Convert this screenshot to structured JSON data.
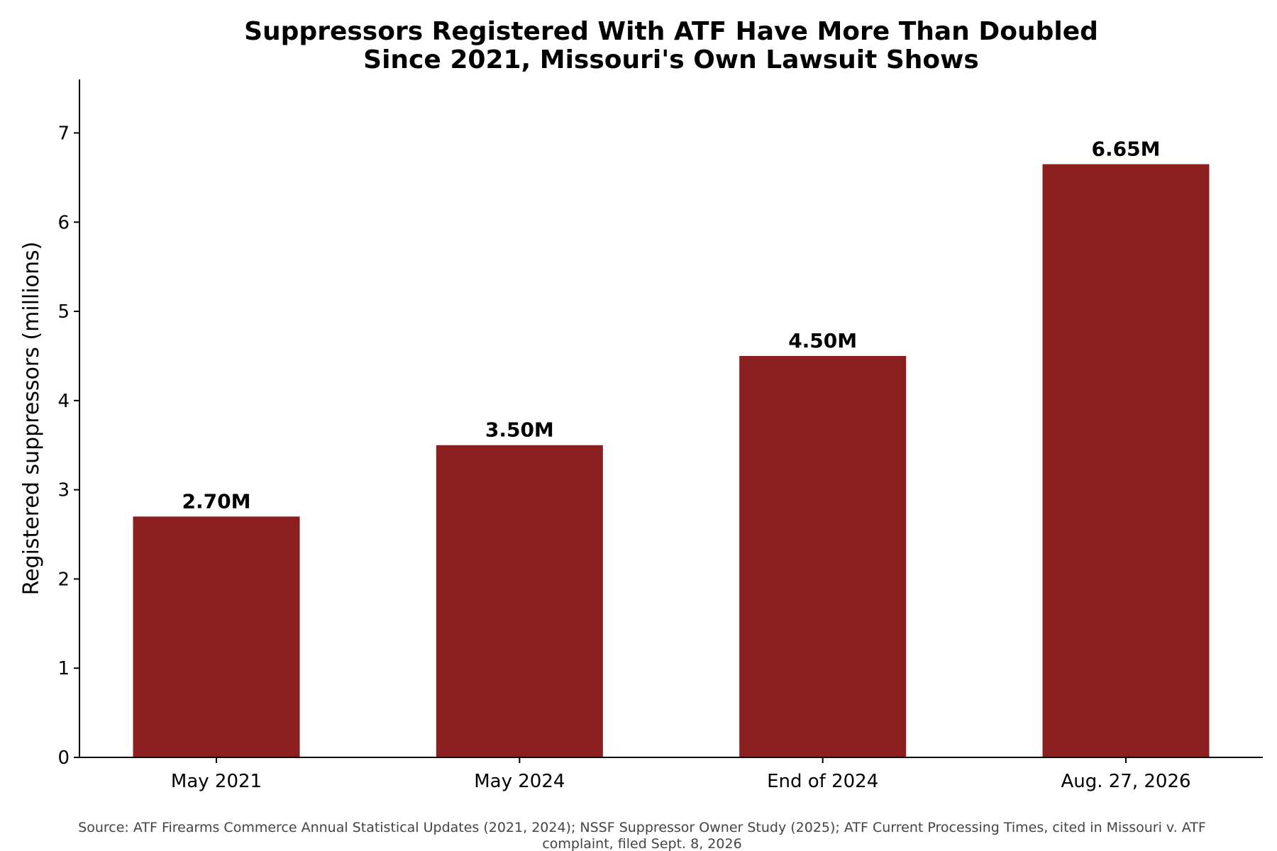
{
  "chart_data": {
    "type": "bar",
    "title_lines": [
      "Suppressors Registered With ATF Have More Than Doubled",
      "Since 2021, Missouri's Own Lawsuit Shows"
    ],
    "xlabel": "",
    "ylabel": "Registered suppressors (millions)",
    "categories": [
      "May 2021",
      "May 2024",
      "End of 2024",
      "Aug. 27, 2026"
    ],
    "values": [
      2.7,
      3.5,
      4.5,
      6.65
    ],
    "data_labels": [
      "2.70M",
      "3.50M",
      "4.50M",
      "6.65M"
    ],
    "ylim": [
      0,
      7.6
    ],
    "yticks": [
      0,
      1,
      2,
      3,
      4,
      5,
      6,
      7
    ],
    "grid": false,
    "legend": "none",
    "bar_color": "#8b1e1f",
    "source_lines": [
      "Source: ATF Firearms Commerce Annual Statistical Updates (2021, 2024); NSSF Suppressor Owner Study (2025); ATF Current Processing Times, cited in Missouri v. ATF",
      "complaint, filed Sept. 8, 2026"
    ]
  }
}
